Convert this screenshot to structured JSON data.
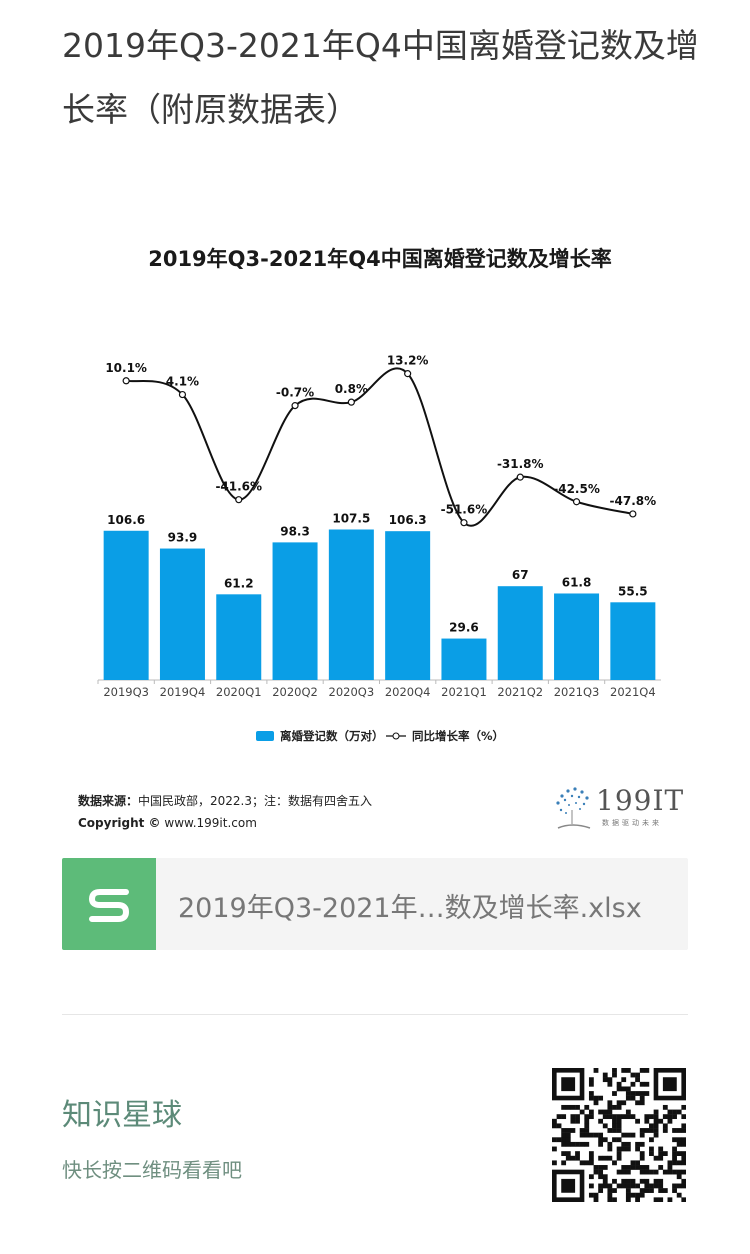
{
  "page": {
    "title": "2019年Q3-2021年Q4中国离婚登记数及增长率（附原数据表）"
  },
  "chart_data": {
    "type": "bar",
    "title": "2019年Q3-2021年Q4中国离婚登记数及增长率",
    "categories": [
      "2019Q3",
      "2019Q4",
      "2020Q1",
      "2020Q2",
      "2020Q3",
      "2020Q4",
      "2021Q1",
      "2021Q2",
      "2021Q3",
      "2021Q4"
    ],
    "series": [
      {
        "name": "离婚登记数（万对）",
        "type": "bar",
        "values": [
          106.6,
          93.9,
          61.2,
          98.3,
          107.5,
          106.3,
          29.6,
          67,
          61.8,
          55.5
        ],
        "labels": [
          "106.6",
          "93.9",
          "61.2",
          "98.3",
          "107.5",
          "106.3",
          "29.6",
          "67",
          "61.8",
          "55.5"
        ]
      },
      {
        "name": "同比增长率（%）",
        "type": "line",
        "values": [
          10.1,
          4.1,
          -41.6,
          -0.7,
          0.8,
          13.2,
          -51.6,
          -31.8,
          -42.5,
          -47.8
        ],
        "labels": [
          "10.1%",
          "4.1%",
          "-41.6%",
          "-0.7%",
          "0.8%",
          "13.2%",
          "-51.6%",
          "-31.8%",
          "-42.5%",
          "-47.8%"
        ]
      }
    ],
    "legend": {
      "position": "bottom-center",
      "bar_label": "离婚登记数（万对）",
      "line_label": "同比增长率（%）"
    },
    "colors": {
      "bar": "#0a9ee6",
      "line": "#111111"
    },
    "grid": false
  },
  "source": {
    "label": "数据来源：",
    "text": "中国民政部，2022.3；注：数据有四舍五入",
    "copyright_label": "Copyright ©",
    "copyright_text": "www.199it.com"
  },
  "logo": {
    "name": "199IT",
    "tagline": "数据驱动未来",
    "icon": "dandelion-logo-icon"
  },
  "file_card": {
    "icon": "s-sheet-icon",
    "filename": "2019年Q3-2021年…数及增长率.xlsx",
    "color": "#5dbb79"
  },
  "promo": {
    "title": "知识星球",
    "subtitle": "快长按二维码看看吧",
    "qr_icon": "qr-code-icon"
  }
}
